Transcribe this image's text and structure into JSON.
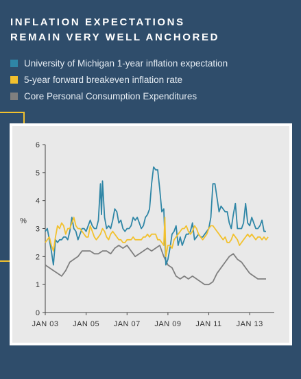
{
  "title_lines": [
    "INFLATION EXPECTATIONS",
    "REMAIN VERY WELL ANCHORED"
  ],
  "colors": {
    "background": "#2f4d6b",
    "michigan": "#2f86a6",
    "breakeven": "#f2c12e",
    "pce": "#7f7f7f",
    "accent": "#f2c12e"
  },
  "chart_data": {
    "type": "line",
    "title": "INFLATION EXPECTATIONS REMAIN VERY WELL ANCHORED",
    "xlabel": "",
    "ylabel": "%",
    "xlim": [
      2003.0,
      2014.0
    ],
    "ylim": [
      0,
      6
    ],
    "yticks": [
      0,
      1,
      2,
      3,
      4,
      5,
      6
    ],
    "xticks": [
      {
        "label": "JAN 03",
        "x": 2003.0
      },
      {
        "label": "JAN 05",
        "x": 2005.0
      },
      {
        "label": "JAN 07",
        "x": 2007.0
      },
      {
        "label": "JAN 09",
        "x": 2009.0
      },
      {
        "label": "JAN 11",
        "x": 2011.0
      },
      {
        "label": "JAN 13",
        "x": 2013.0
      }
    ],
    "grid": false,
    "legend": "top",
    "series": [
      {
        "name": "University of Michigan 1-year inflation expectation",
        "color": "#2f86a6",
        "points": [
          [
            2003.0,
            2.9
          ],
          [
            2003.1,
            3.0
          ],
          [
            2003.2,
            2.6
          ],
          [
            2003.3,
            2.2
          ],
          [
            2003.4,
            1.7
          ],
          [
            2003.5,
            2.6
          ],
          [
            2003.6,
            2.5
          ],
          [
            2003.7,
            2.6
          ],
          [
            2003.8,
            2.6
          ],
          [
            2003.9,
            2.7
          ],
          [
            2004.0,
            2.7
          ],
          [
            2004.1,
            2.6
          ],
          [
            2004.2,
            2.9
          ],
          [
            2004.3,
            3.4
          ],
          [
            2004.4,
            3.0
          ],
          [
            2004.5,
            2.9
          ],
          [
            2004.6,
            2.6
          ],
          [
            2004.7,
            2.8
          ],
          [
            2004.8,
            3.0
          ],
          [
            2004.9,
            3.0
          ],
          [
            2005.0,
            2.9
          ],
          [
            2005.1,
            3.1
          ],
          [
            2005.2,
            3.3
          ],
          [
            2005.3,
            3.1
          ],
          [
            2005.4,
            3.0
          ],
          [
            2005.5,
            3.0
          ],
          [
            2005.6,
            3.3
          ],
          [
            2005.7,
            4.6
          ],
          [
            2005.75,
            3.5
          ],
          [
            2005.8,
            4.7
          ],
          [
            2005.9,
            3.4
          ],
          [
            2006.0,
            3.0
          ],
          [
            2006.1,
            3.1
          ],
          [
            2006.2,
            3.0
          ],
          [
            2006.3,
            3.3
          ],
          [
            2006.4,
            3.7
          ],
          [
            2006.5,
            3.6
          ],
          [
            2006.6,
            3.2
          ],
          [
            2006.7,
            3.3
          ],
          [
            2006.8,
            3.0
          ],
          [
            2006.9,
            2.9
          ],
          [
            2007.0,
            3.0
          ],
          [
            2007.1,
            3.0
          ],
          [
            2007.2,
            3.1
          ],
          [
            2007.3,
            3.4
          ],
          [
            2007.4,
            3.3
          ],
          [
            2007.5,
            3.4
          ],
          [
            2007.6,
            3.2
          ],
          [
            2007.7,
            3.0
          ],
          [
            2007.8,
            3.1
          ],
          [
            2007.9,
            3.4
          ],
          [
            2008.0,
            3.5
          ],
          [
            2008.1,
            3.7
          ],
          [
            2008.2,
            4.6
          ],
          [
            2008.3,
            5.2
          ],
          [
            2008.4,
            5.1
          ],
          [
            2008.5,
            5.1
          ],
          [
            2008.6,
            4.4
          ],
          [
            2008.7,
            3.6
          ],
          [
            2008.8,
            3.7
          ],
          [
            2008.9,
            1.7
          ],
          [
            2009.0,
            1.9
          ],
          [
            2009.1,
            2.3
          ],
          [
            2009.2,
            2.8
          ],
          [
            2009.3,
            2.9
          ],
          [
            2009.4,
            3.1
          ],
          [
            2009.5,
            2.4
          ],
          [
            2009.6,
            2.7
          ],
          [
            2009.7,
            2.4
          ],
          [
            2009.8,
            2.6
          ],
          [
            2009.9,
            2.8
          ],
          [
            2010.0,
            2.8
          ],
          [
            2010.1,
            2.9
          ],
          [
            2010.2,
            3.2
          ],
          [
            2010.3,
            2.6
          ],
          [
            2010.4,
            2.7
          ],
          [
            2010.5,
            2.8
          ],
          [
            2010.6,
            2.7
          ],
          [
            2010.7,
            2.7
          ],
          [
            2010.8,
            2.8
          ],
          [
            2010.9,
            2.9
          ],
          [
            2011.0,
            3.0
          ],
          [
            2011.1,
            3.4
          ],
          [
            2011.2,
            4.6
          ],
          [
            2011.3,
            4.6
          ],
          [
            2011.4,
            4.1
          ],
          [
            2011.5,
            3.6
          ],
          [
            2011.6,
            3.8
          ],
          [
            2011.7,
            3.7
          ],
          [
            2011.8,
            3.6
          ],
          [
            2011.9,
            3.6
          ],
          [
            2012.0,
            3.2
          ],
          [
            2012.1,
            3.0
          ],
          [
            2012.2,
            3.5
          ],
          [
            2012.3,
            3.9
          ],
          [
            2012.4,
            3.0
          ],
          [
            2012.5,
            3.0
          ],
          [
            2012.6,
            3.0
          ],
          [
            2012.7,
            3.2
          ],
          [
            2012.8,
            3.9
          ],
          [
            2012.9,
            3.2
          ],
          [
            2013.0,
            3.1
          ],
          [
            2013.1,
            3.4
          ],
          [
            2013.2,
            3.2
          ],
          [
            2013.3,
            3.0
          ],
          [
            2013.4,
            3.0
          ],
          [
            2013.5,
            3.1
          ],
          [
            2013.6,
            3.3
          ],
          [
            2013.7,
            2.9
          ],
          [
            2013.8,
            2.9
          ]
        ]
      },
      {
        "name": "5-year forward breakeven inflation rate",
        "color": "#f2c12e",
        "points": [
          [
            2003.0,
            2.5
          ],
          [
            2003.1,
            2.6
          ],
          [
            2003.2,
            2.7
          ],
          [
            2003.3,
            2.4
          ],
          [
            2003.4,
            2.2
          ],
          [
            2003.5,
            2.7
          ],
          [
            2003.6,
            3.1
          ],
          [
            2003.7,
            3.0
          ],
          [
            2003.8,
            3.2
          ],
          [
            2003.9,
            3.1
          ],
          [
            2004.0,
            2.8
          ],
          [
            2004.1,
            3.0
          ],
          [
            2004.2,
            3.0
          ],
          [
            2004.3,
            3.2
          ],
          [
            2004.4,
            3.4
          ],
          [
            2004.5,
            3.1
          ],
          [
            2004.6,
            3.0
          ],
          [
            2004.7,
            3.0
          ],
          [
            2004.8,
            2.9
          ],
          [
            2004.9,
            2.8
          ],
          [
            2005.0,
            2.7
          ],
          [
            2005.1,
            2.7
          ],
          [
            2005.2,
            3.1
          ],
          [
            2005.3,
            2.9
          ],
          [
            2005.4,
            2.7
          ],
          [
            2005.5,
            2.6
          ],
          [
            2005.6,
            2.7
          ],
          [
            2005.7,
            2.8
          ],
          [
            2005.8,
            3.0
          ],
          [
            2005.9,
            2.9
          ],
          [
            2006.0,
            2.7
          ],
          [
            2006.1,
            2.6
          ],
          [
            2006.2,
            2.8
          ],
          [
            2006.3,
            2.9
          ],
          [
            2006.4,
            2.8
          ],
          [
            2006.5,
            2.7
          ],
          [
            2006.6,
            2.6
          ],
          [
            2006.7,
            2.6
          ],
          [
            2006.8,
            2.5
          ],
          [
            2006.9,
            2.5
          ],
          [
            2007.0,
            2.6
          ],
          [
            2007.1,
            2.6
          ],
          [
            2007.2,
            2.6
          ],
          [
            2007.3,
            2.7
          ],
          [
            2007.4,
            2.6
          ],
          [
            2007.5,
            2.6
          ],
          [
            2007.6,
            2.6
          ],
          [
            2007.7,
            2.6
          ],
          [
            2007.8,
            2.7
          ],
          [
            2007.9,
            2.7
          ],
          [
            2008.0,
            2.8
          ],
          [
            2008.1,
            2.7
          ],
          [
            2008.2,
            2.8
          ],
          [
            2008.3,
            2.8
          ],
          [
            2008.4,
            2.8
          ],
          [
            2008.5,
            2.6
          ],
          [
            2008.6,
            2.6
          ],
          [
            2008.7,
            2.5
          ],
          [
            2008.8,
            2.4
          ],
          [
            2008.85,
            3.4
          ],
          [
            2008.9,
            2.0
          ],
          [
            2009.0,
            2.4
          ],
          [
            2009.1,
            2.4
          ],
          [
            2009.2,
            2.3
          ],
          [
            2009.3,
            2.6
          ],
          [
            2009.4,
            2.7
          ],
          [
            2009.5,
            2.8
          ],
          [
            2009.6,
            2.9
          ],
          [
            2009.7,
            3.0
          ],
          [
            2009.8,
            3.0
          ],
          [
            2009.9,
            3.1
          ],
          [
            2010.0,
            2.9
          ],
          [
            2010.1,
            2.8
          ],
          [
            2010.2,
            2.9
          ],
          [
            2010.3,
            3.1
          ],
          [
            2010.4,
            3.0
          ],
          [
            2010.5,
            2.8
          ],
          [
            2010.6,
            2.7
          ],
          [
            2010.7,
            2.6
          ],
          [
            2010.8,
            2.7
          ],
          [
            2010.9,
            2.8
          ],
          [
            2011.0,
            3.0
          ],
          [
            2011.1,
            3.1
          ],
          [
            2011.2,
            3.1
          ],
          [
            2011.3,
            3.0
          ],
          [
            2011.4,
            2.9
          ],
          [
            2011.5,
            2.8
          ],
          [
            2011.6,
            2.7
          ],
          [
            2011.7,
            2.6
          ],
          [
            2011.8,
            2.7
          ],
          [
            2011.9,
            2.5
          ],
          [
            2012.0,
            2.5
          ],
          [
            2012.1,
            2.6
          ],
          [
            2012.2,
            2.8
          ],
          [
            2012.3,
            2.7
          ],
          [
            2012.4,
            2.6
          ],
          [
            2012.5,
            2.4
          ],
          [
            2012.6,
            2.5
          ],
          [
            2012.7,
            2.6
          ],
          [
            2012.8,
            2.7
          ],
          [
            2012.9,
            2.8
          ],
          [
            2013.0,
            2.7
          ],
          [
            2013.1,
            2.8
          ],
          [
            2013.2,
            2.7
          ],
          [
            2013.3,
            2.6
          ],
          [
            2013.4,
            2.7
          ],
          [
            2013.5,
            2.7
          ],
          [
            2013.6,
            2.6
          ],
          [
            2013.7,
            2.7
          ],
          [
            2013.8,
            2.6
          ],
          [
            2013.9,
            2.7
          ]
        ]
      },
      {
        "name": "Core Personal Consumption Expenditures",
        "color": "#7f7f7f",
        "points": [
          [
            2003.0,
            1.7
          ],
          [
            2003.2,
            1.6
          ],
          [
            2003.4,
            1.5
          ],
          [
            2003.6,
            1.4
          ],
          [
            2003.8,
            1.3
          ],
          [
            2004.0,
            1.5
          ],
          [
            2004.2,
            1.8
          ],
          [
            2004.4,
            1.9
          ],
          [
            2004.6,
            2.0
          ],
          [
            2004.8,
            2.2
          ],
          [
            2005.0,
            2.2
          ],
          [
            2005.2,
            2.2
          ],
          [
            2005.4,
            2.1
          ],
          [
            2005.6,
            2.1
          ],
          [
            2005.8,
            2.2
          ],
          [
            2006.0,
            2.2
          ],
          [
            2006.2,
            2.1
          ],
          [
            2006.4,
            2.3
          ],
          [
            2006.6,
            2.4
          ],
          [
            2006.8,
            2.3
          ],
          [
            2007.0,
            2.4
          ],
          [
            2007.2,
            2.2
          ],
          [
            2007.4,
            2.0
          ],
          [
            2007.6,
            2.1
          ],
          [
            2007.8,
            2.2
          ],
          [
            2008.0,
            2.3
          ],
          [
            2008.2,
            2.2
          ],
          [
            2008.4,
            2.3
          ],
          [
            2008.6,
            2.4
          ],
          [
            2008.8,
            2.0
          ],
          [
            2009.0,
            1.7
          ],
          [
            2009.2,
            1.6
          ],
          [
            2009.4,
            1.3
          ],
          [
            2009.6,
            1.2
          ],
          [
            2009.8,
            1.3
          ],
          [
            2010.0,
            1.2
          ],
          [
            2010.2,
            1.3
          ],
          [
            2010.4,
            1.2
          ],
          [
            2010.6,
            1.1
          ],
          [
            2010.8,
            1.0
          ],
          [
            2011.0,
            1.0
          ],
          [
            2011.2,
            1.1
          ],
          [
            2011.4,
            1.4
          ],
          [
            2011.6,
            1.6
          ],
          [
            2011.8,
            1.8
          ],
          [
            2012.0,
            2.0
          ],
          [
            2012.2,
            2.1
          ],
          [
            2012.4,
            1.9
          ],
          [
            2012.6,
            1.8
          ],
          [
            2012.8,
            1.6
          ],
          [
            2013.0,
            1.4
          ],
          [
            2013.2,
            1.3
          ],
          [
            2013.4,
            1.2
          ],
          [
            2013.6,
            1.2
          ],
          [
            2013.8,
            1.2
          ]
        ]
      }
    ]
  }
}
